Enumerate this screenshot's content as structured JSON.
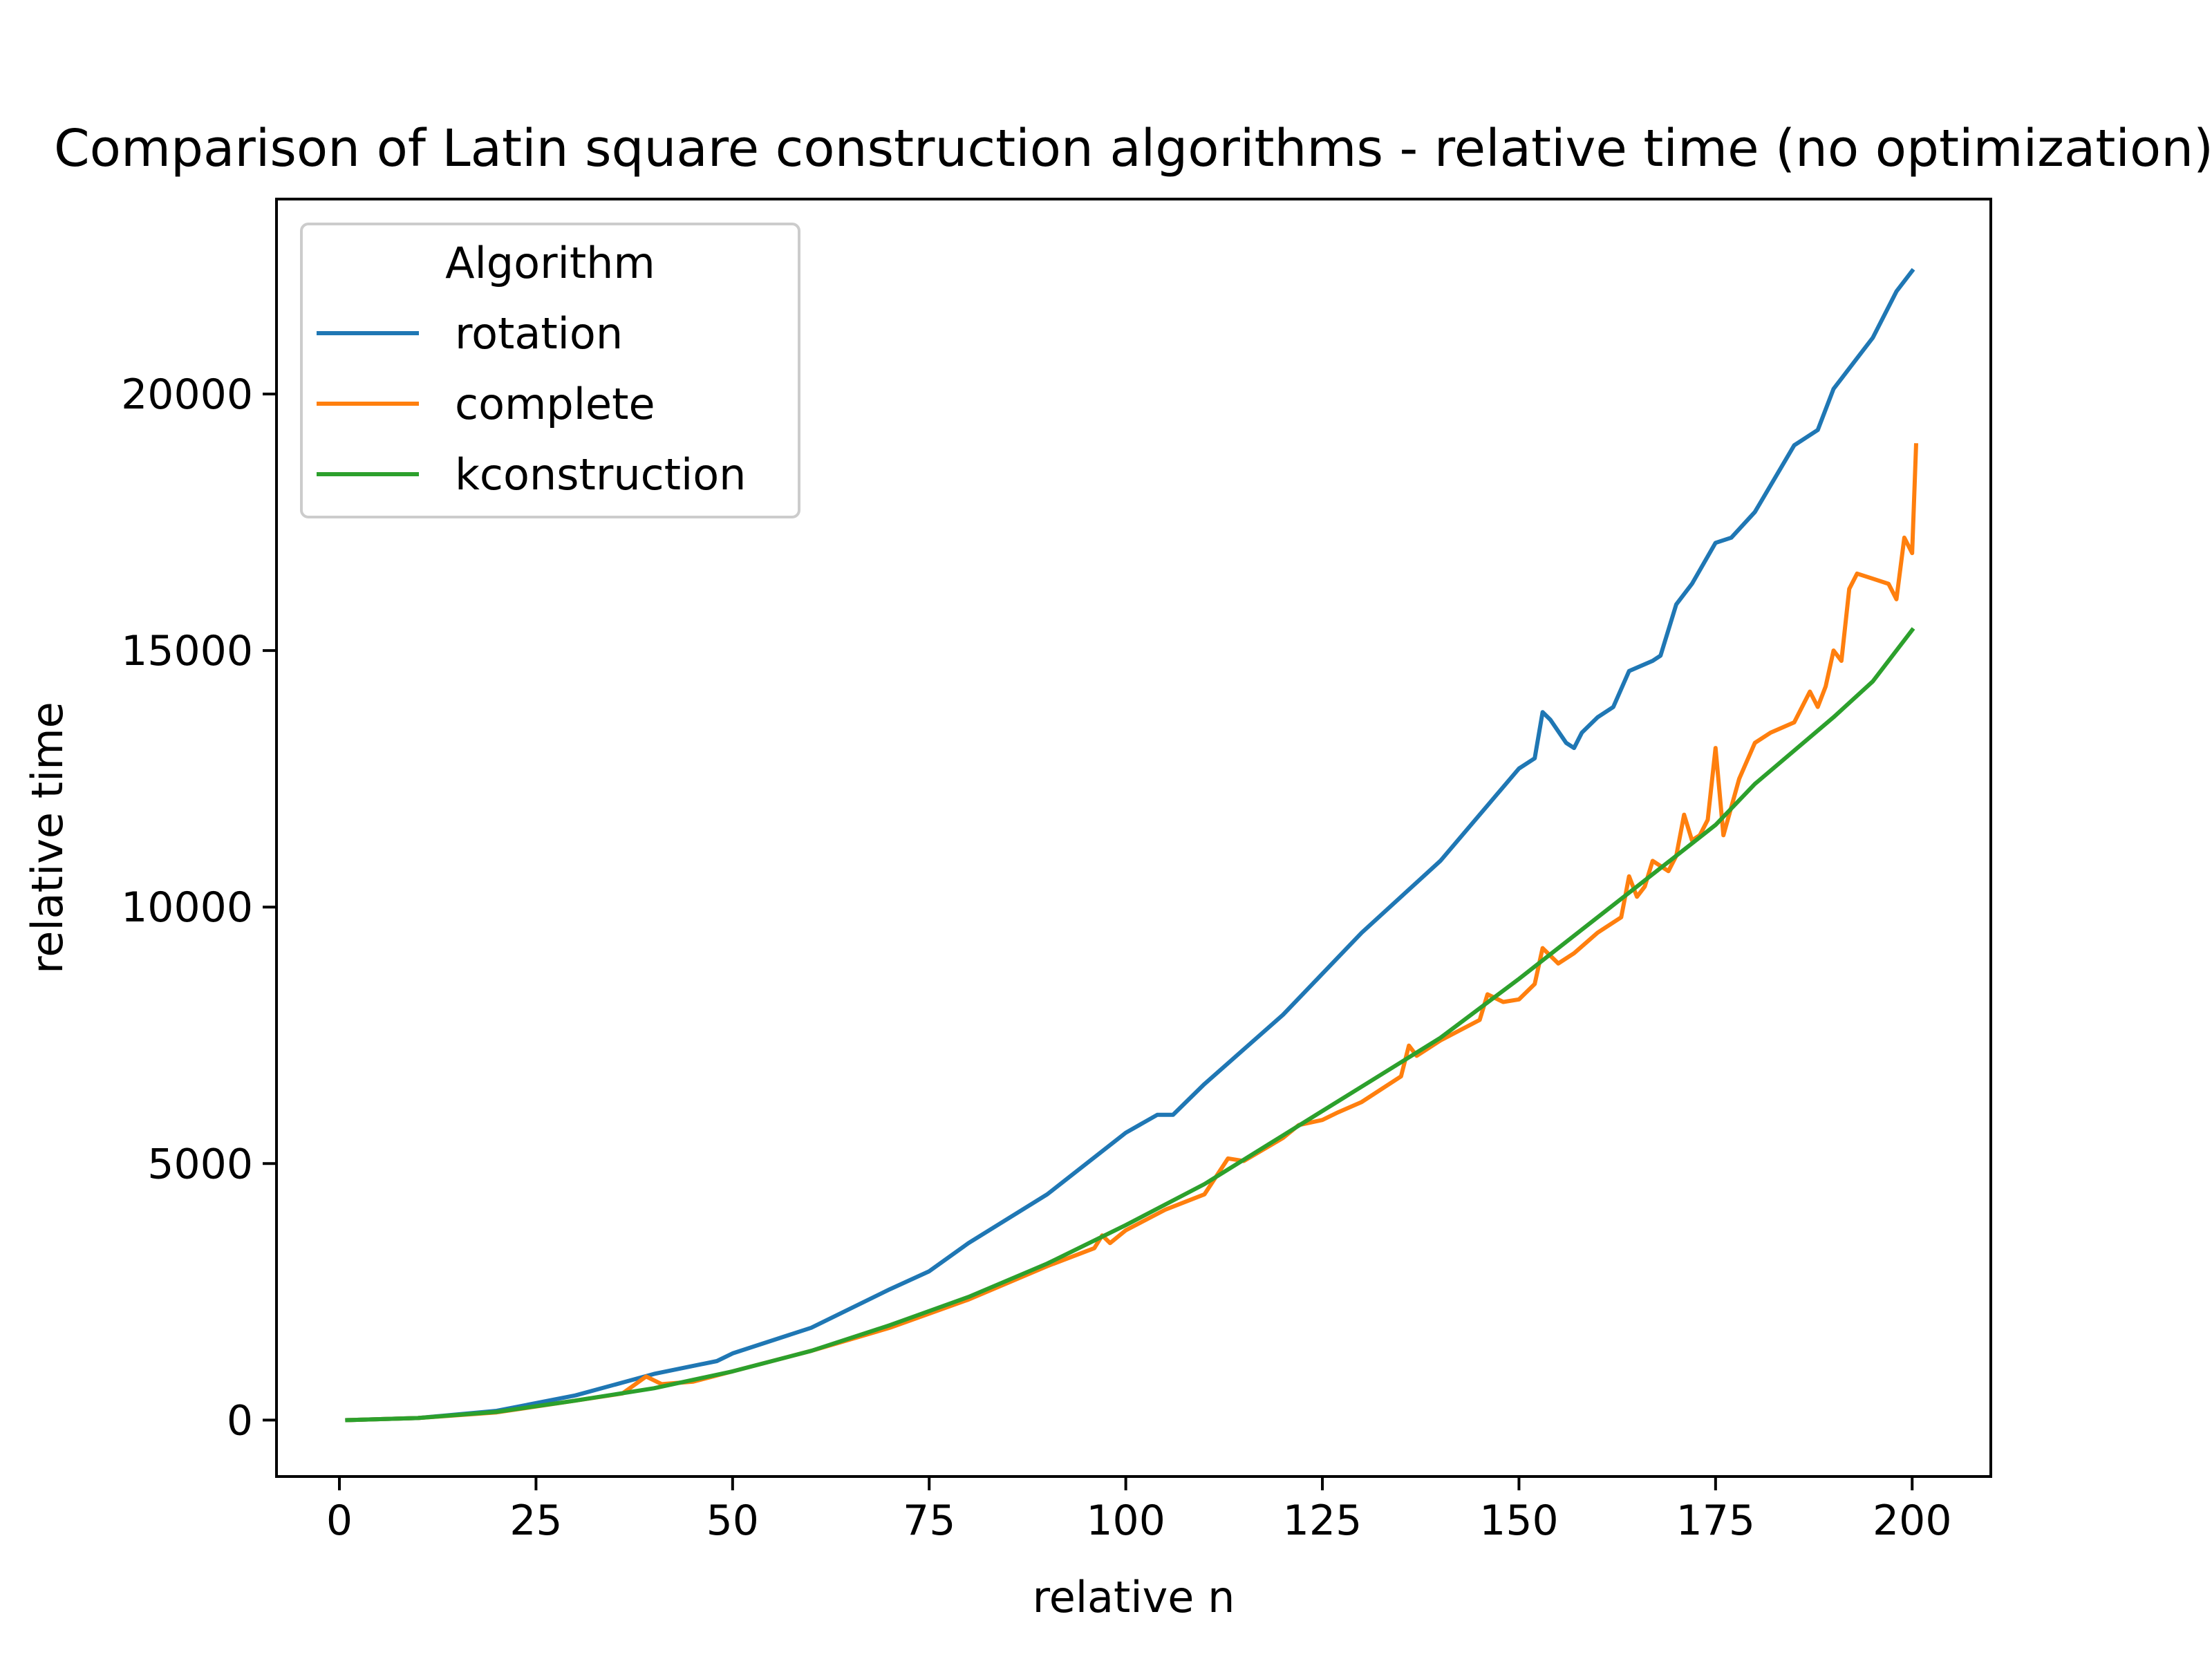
{
  "chart_data": {
    "type": "line",
    "title": "Comparison of Latin square construction algorithms - relative time (no optimization)",
    "xlabel": "relative n",
    "ylabel": "relative time",
    "xlim": [
      -8,
      210
    ],
    "ylim": [
      -1100,
      23800
    ],
    "xticks": [
      0,
      25,
      50,
      75,
      100,
      125,
      150,
      175,
      200
    ],
    "yticks": [
      0,
      5000,
      10000,
      15000,
      20000
    ],
    "grid": false,
    "legend": {
      "title": "Algorithm",
      "placement": "upper-left"
    },
    "series": [
      {
        "name": "rotation",
        "color": "#1f77b4",
        "points": [
          [
            1,
            0
          ],
          [
            10,
            40
          ],
          [
            20,
            180
          ],
          [
            30,
            480
          ],
          [
            40,
            900
          ],
          [
            48,
            1150
          ],
          [
            50,
            1300
          ],
          [
            60,
            1800
          ],
          [
            70,
            2550
          ],
          [
            75,
            2900
          ],
          [
            80,
            3450
          ],
          [
            90,
            4400
          ],
          [
            100,
            5600
          ],
          [
            104,
            5950
          ],
          [
            106,
            5950
          ],
          [
            110,
            6550
          ],
          [
            120,
            7900
          ],
          [
            130,
            9500
          ],
          [
            140,
            10900
          ],
          [
            150,
            12700
          ],
          [
            152,
            12900
          ],
          [
            153,
            13800
          ],
          [
            154,
            13650
          ],
          [
            156,
            13200
          ],
          [
            157,
            13100
          ],
          [
            158,
            13400
          ],
          [
            160,
            13700
          ],
          [
            162,
            13900
          ],
          [
            164,
            14600
          ],
          [
            167,
            14800
          ],
          [
            168,
            14900
          ],
          [
            170,
            15900
          ],
          [
            172,
            16300
          ],
          [
            175,
            17100
          ],
          [
            177,
            17200
          ],
          [
            180,
            17700
          ],
          [
            185,
            19000
          ],
          [
            188,
            19300
          ],
          [
            190,
            20100
          ],
          [
            195,
            21100
          ],
          [
            198,
            22000
          ],
          [
            200,
            22400
          ]
        ]
      },
      {
        "name": "complete",
        "color": "#ff7f0e",
        "points": [
          [
            1,
            0
          ],
          [
            10,
            40
          ],
          [
            20,
            150
          ],
          [
            30,
            380
          ],
          [
            36,
            520
          ],
          [
            39,
            850
          ],
          [
            41,
            700
          ],
          [
            45,
            750
          ],
          [
            50,
            950
          ],
          [
            60,
            1350
          ],
          [
            70,
            1800
          ],
          [
            80,
            2350
          ],
          [
            90,
            3000
          ],
          [
            96,
            3350
          ],
          [
            97,
            3600
          ],
          [
            98,
            3450
          ],
          [
            100,
            3700
          ],
          [
            105,
            4100
          ],
          [
            110,
            4400
          ],
          [
            113,
            5100
          ],
          [
            115,
            5050
          ],
          [
            120,
            5500
          ],
          [
            122,
            5750
          ],
          [
            125,
            5850
          ],
          [
            127,
            6000
          ],
          [
            130,
            6200
          ],
          [
            135,
            6700
          ],
          [
            136,
            7300
          ],
          [
            137,
            7100
          ],
          [
            140,
            7400
          ],
          [
            145,
            7800
          ],
          [
            146,
            8300
          ],
          [
            148,
            8150
          ],
          [
            150,
            8200
          ],
          [
            152,
            8500
          ],
          [
            153,
            9200
          ],
          [
            155,
            8900
          ],
          [
            157,
            9100
          ],
          [
            160,
            9500
          ],
          [
            163,
            9800
          ],
          [
            164,
            10600
          ],
          [
            165,
            10200
          ],
          [
            166,
            10400
          ],
          [
            167,
            10900
          ],
          [
            169,
            10700
          ],
          [
            170,
            11000
          ],
          [
            171,
            11800
          ],
          [
            172,
            11300
          ],
          [
            173,
            11400
          ],
          [
            174,
            11700
          ],
          [
            175,
            13100
          ],
          [
            176,
            11400
          ],
          [
            178,
            12500
          ],
          [
            180,
            13200
          ],
          [
            182,
            13400
          ],
          [
            185,
            13600
          ],
          [
            187,
            14200
          ],
          [
            188,
            13900
          ],
          [
            189,
            14300
          ],
          [
            190,
            15000
          ],
          [
            191,
            14800
          ],
          [
            192,
            16200
          ],
          [
            193,
            16500
          ],
          [
            195,
            16400
          ],
          [
            197,
            16300
          ],
          [
            198,
            16000
          ],
          [
            199,
            17200
          ],
          [
            200,
            16900
          ],
          [
            200.5,
            19000
          ]
        ]
      },
      {
        "name": "kconstruction",
        "color": "#2ca02c",
        "points": [
          [
            1,
            0
          ],
          [
            10,
            40
          ],
          [
            20,
            160
          ],
          [
            30,
            380
          ],
          [
            40,
            620
          ],
          [
            50,
            950
          ],
          [
            60,
            1350
          ],
          [
            70,
            1850
          ],
          [
            80,
            2400
          ],
          [
            90,
            3050
          ],
          [
            100,
            3800
          ],
          [
            110,
            4600
          ],
          [
            120,
            5550
          ],
          [
            130,
            6500
          ],
          [
            140,
            7450
          ],
          [
            150,
            8600
          ],
          [
            160,
            9800
          ],
          [
            170,
            11000
          ],
          [
            175,
            11600
          ],
          [
            180,
            12400
          ],
          [
            190,
            13700
          ],
          [
            195,
            14400
          ],
          [
            198,
            15000
          ],
          [
            200,
            15400
          ]
        ]
      }
    ]
  }
}
